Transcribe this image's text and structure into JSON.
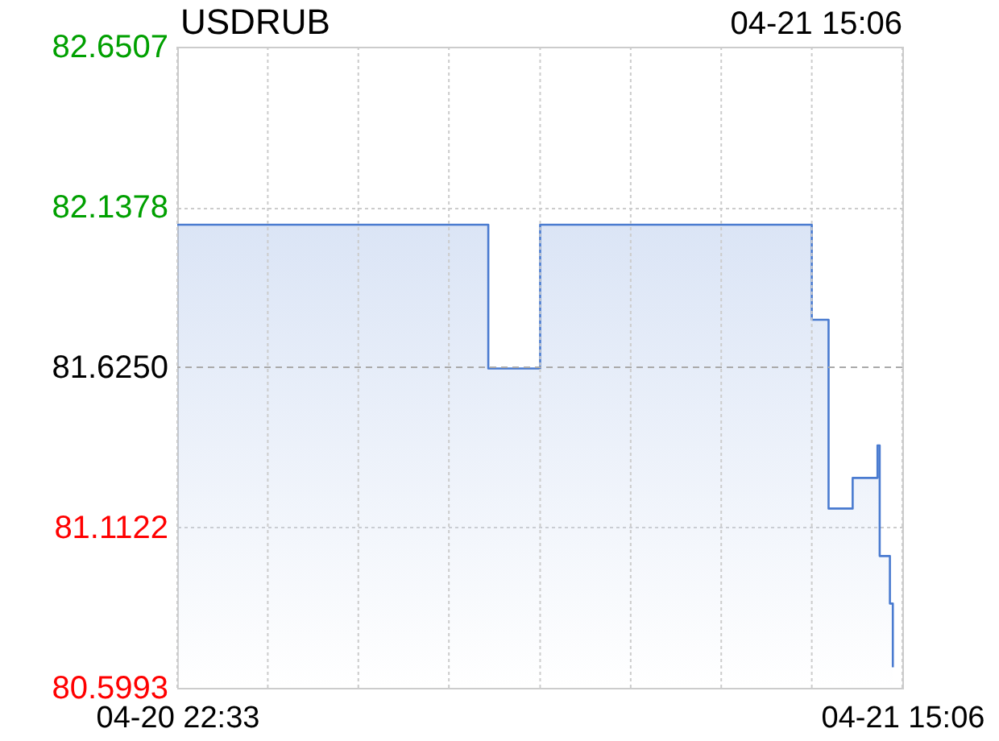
{
  "chart_data": {
    "type": "area",
    "title": "USDRUB",
    "subtitle": "04-21 15:06",
    "x": [
      "--04-20T22:33",
      "--04-21T05:39",
      "--04-21T05:39",
      "--04-21T06:50",
      "--04-21T06:50",
      "--04-21T13:02",
      "--04-21T13:02",
      "--04-21T13:25",
      "--04-21T13:25",
      "--04-21T13:58",
      "--04-21T13:58",
      "--04-21T14:32",
      "--04-21T14:32",
      "--04-21T14:35",
      "--04-21T14:35",
      "--04-21T14:49",
      "--04-21T14:49",
      "--04-21T14:53",
      "--04-21T14:53"
    ],
    "series": [
      {
        "color": "#4a7bd0",
        "values": [
          82.081,
          82.081,
          81.621,
          81.621,
          82.081,
          82.081,
          81.777,
          81.777,
          81.173,
          81.173,
          81.271,
          81.271,
          81.375,
          81.375,
          81.021,
          81.021,
          80.869,
          80.869,
          80.665
        ]
      }
    ],
    "xlim": [
      "--04-20T22:33",
      "--04-21T15:06"
    ],
    "xticks": [
      {
        "value": "--04-20T22:33",
        "label": "04-20 22:33"
      },
      {
        "value": "--04-21T00:37",
        "label": null
      },
      {
        "value": "--04-21T02:41",
        "label": null
      },
      {
        "value": "--04-21T04:45",
        "label": null
      },
      {
        "value": "--04-21T06:50",
        "label": null
      },
      {
        "value": "--04-21T08:54",
        "label": null
      },
      {
        "value": "--04-21T10:58",
        "label": null
      },
      {
        "value": "--04-21T13:02",
        "label": null
      },
      {
        "value": "--04-21T15:06",
        "label": "04-21 15:06"
      }
    ],
    "ylim": [
      80.5993,
      82.6507
    ],
    "yticks": [
      80.5993,
      81.1122,
      {
        "value": 81.625,
        "label": "81.6250"
      },
      82.1378,
      82.6507
    ],
    "ref_lines": [
      {
        "axis": "y",
        "value": 81.625,
        "color": "#aaaaaa",
        "line_style": "dashed"
      }
    ],
    "grid": true
  }
}
